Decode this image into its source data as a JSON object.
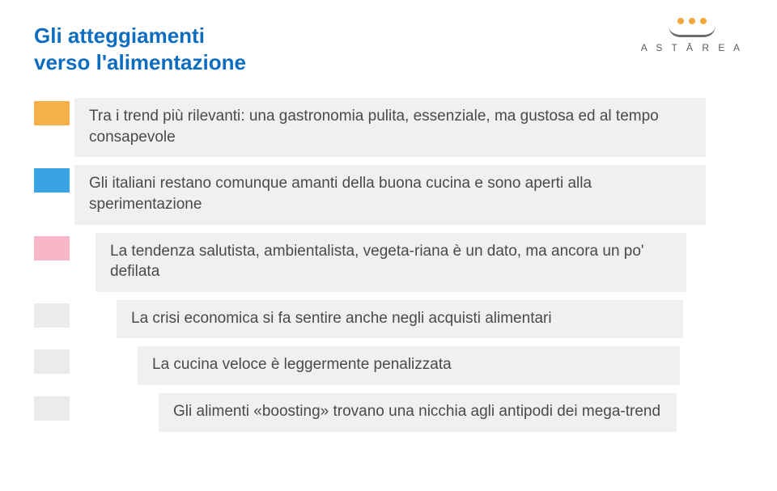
{
  "brand": {
    "name": "A S T Ā R E A",
    "dot_colors": [
      "#f2a83b",
      "#f2a83b",
      "#f2a83b"
    ],
    "arc_color": "#6b6b6b",
    "text_color": "#5a5a5a"
  },
  "title_line1": "Gli atteggiamenti",
  "title_line2": "verso l'alimentazione",
  "title_color": "#0f6dbf",
  "bubble_bg": "#f0f0f0",
  "body_text_color": "#4a4a4a",
  "items": [
    {
      "chip_color": "#f6b24a",
      "text": "Tra i trend più rilevanti: una gastronomia pulita, essenziale, ma gustosa ed al tempo consapevole"
    },
    {
      "chip_color": "#3aa3e3",
      "text": "Gli italiani restano comunque amanti della buona cucina e sono aperti alla sperimentazione"
    },
    {
      "chip_color": "#f8b7c9",
      "text": "La tendenza salutista, ambientalista, vegeta-riana è un dato, ma ancora un po' defilata"
    },
    {
      "chip_color": "#ebebeb",
      "text": "La crisi economica si fa sentire anche negli acquisti alimentari"
    },
    {
      "chip_color": "#ebebeb",
      "text": "La cucina veloce è leggermente penalizzata"
    },
    {
      "chip_color": "#ebebeb",
      "text": "Gli alimenti «boosting» trovano una nicchia agli antipodi dei mega-trend"
    }
  ]
}
